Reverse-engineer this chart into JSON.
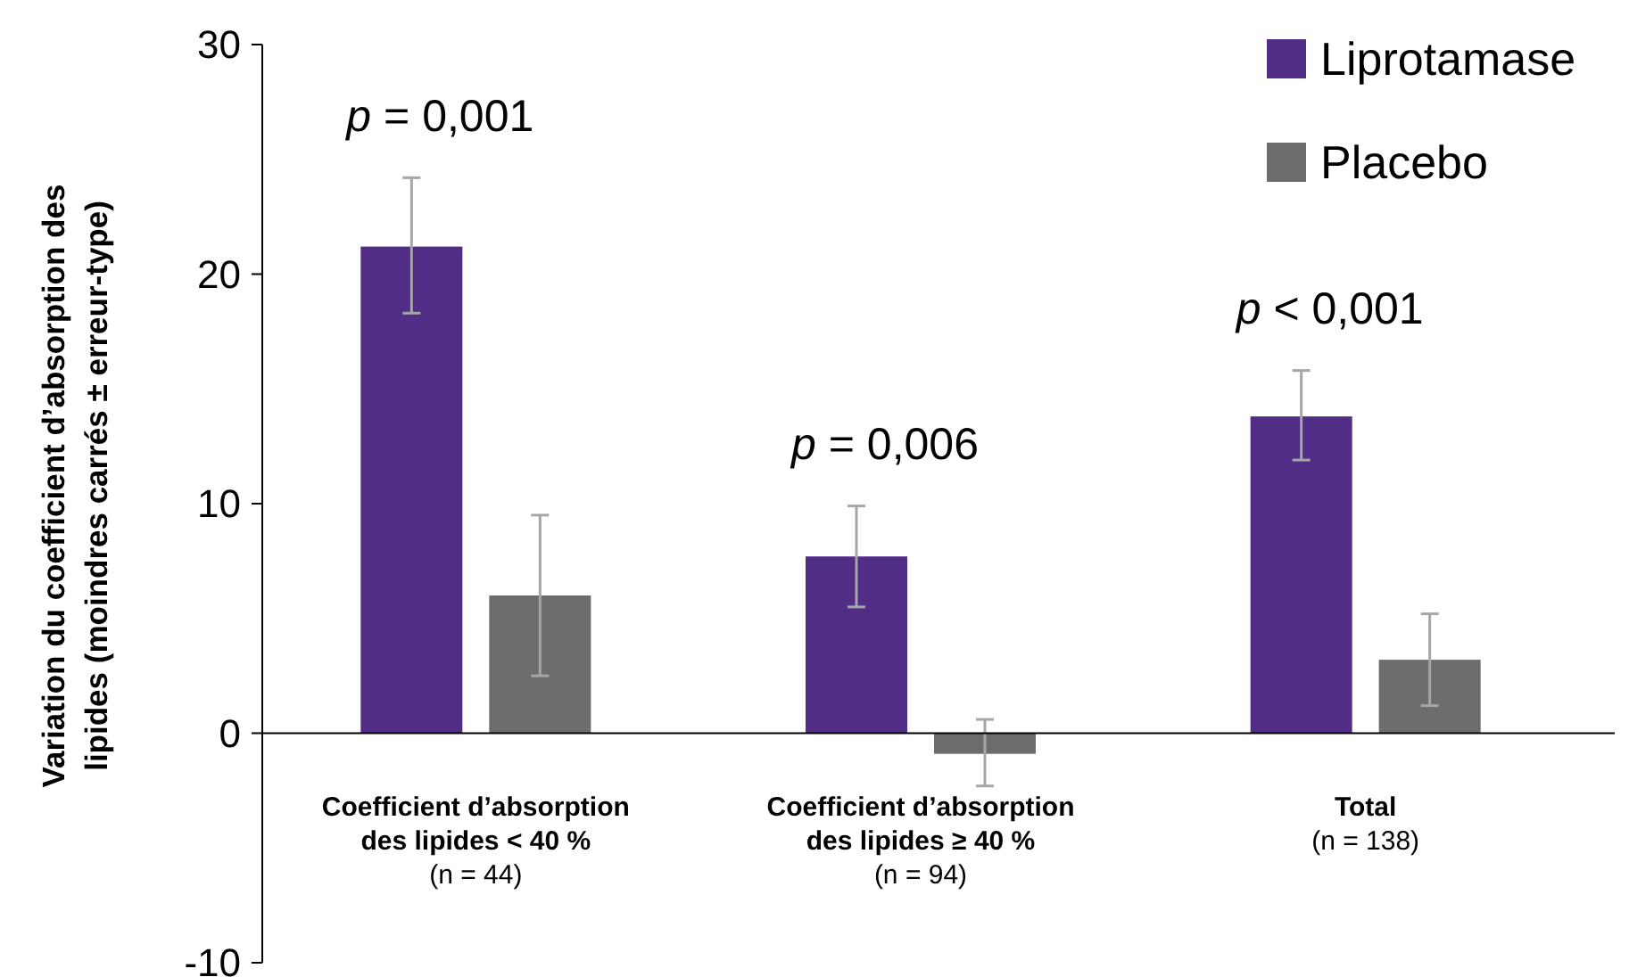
{
  "chart_data": {
    "type": "bar",
    "ylabel": "Variation du coefficient d’absorption des\nlipides (moindres carrés ± erreur-type)",
    "categories": [
      "Coefficient d’absorption\ndes lipides < 40 %\n(n = 44)",
      "Coefficient d’absorption\ndes lipides ≥ 40 %\n(n = 94)",
      "Total\n(n = 138)"
    ],
    "series": [
      {
        "name": "Liprotamase",
        "color": "#512d85",
        "values": [
          21.2,
          7.7,
          13.8
        ],
        "errors": [
          [
            18.3,
            24.2
          ],
          [
            5.5,
            9.9
          ],
          [
            11.9,
            15.8
          ]
        ]
      },
      {
        "name": "Placebo",
        "color": "#6d6d6d",
        "values": [
          6.0,
          -0.9,
          3.2
        ],
        "errors": [
          [
            2.5,
            9.5
          ],
          [
            -2.3,
            0.6
          ],
          [
            1.2,
            5.2
          ]
        ]
      }
    ],
    "ylim": [
      -10,
      30
    ],
    "yticks": [
      -10,
      0,
      10,
      20,
      30
    ],
    "grid": false,
    "legend": "top right",
    "annotations": [
      "p = 0,001",
      "p = 0,006",
      "p < 0,001"
    ]
  }
}
